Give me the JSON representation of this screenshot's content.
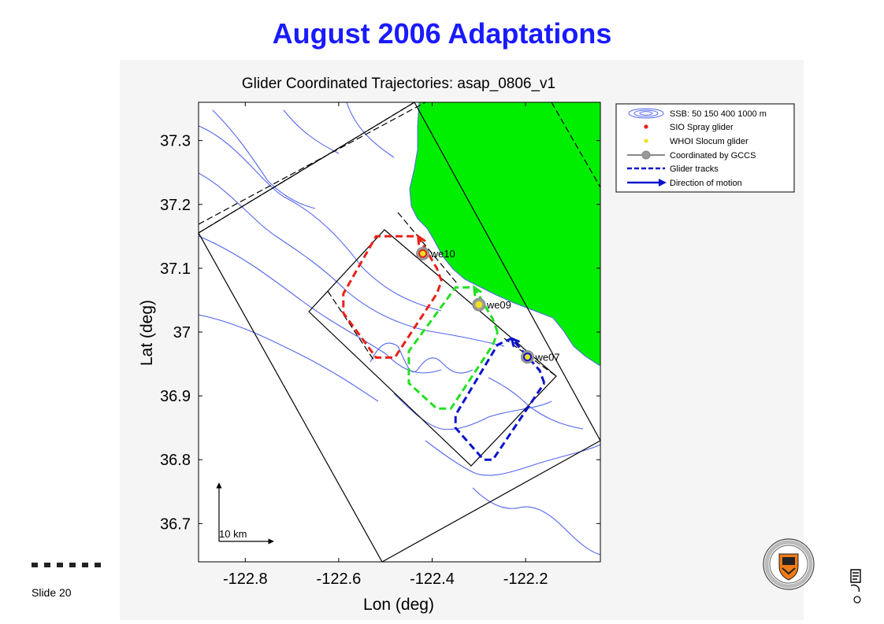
{
  "slide": {
    "title": "August 2006 Adaptations",
    "number_label": "Slide 20"
  },
  "chart_data": {
    "type": "map",
    "title": "Glider Coordinated Trajectories: asap_0806_v1",
    "xlabel": "Lon (deg)",
    "ylabel": "Lat (deg)",
    "xlim": [
      -122.9,
      -122.04
    ],
    "ylim": [
      36.64,
      37.36
    ],
    "xticks": [
      "-122.8",
      "-122.6",
      "-122.4",
      "-122.2"
    ],
    "xtick_values": [
      -122.8,
      -122.6,
      -122.4,
      -122.2
    ],
    "yticks": [
      "37.3",
      "37.2",
      "37.1",
      "37",
      "36.9",
      "36.8",
      "36.7"
    ],
    "ytick_values": [
      37.3,
      37.2,
      37.1,
      37.0,
      36.9,
      36.8,
      36.7
    ],
    "legend": {
      "placement": "outside-right",
      "items": [
        "SSB: 50   150   400  1000 m",
        "SIO Spray glider",
        "WHOI Slocum glider",
        "Coordinated by GCCS",
        "Glider tracks",
        "Direction of motion"
      ]
    },
    "gliders": [
      {
        "name": "we10",
        "type": "SIO Spray",
        "color": "#e8211a",
        "current": [
          -122.42,
          37.123
        ],
        "track": [
          [
            -122.38,
            37.08
          ],
          [
            -122.39,
            37.1
          ],
          [
            -122.43,
            37.15
          ],
          [
            -122.52,
            37.15
          ],
          [
            -122.59,
            37.06
          ],
          [
            -122.59,
            37.03
          ],
          [
            -122.52,
            36.96
          ],
          [
            -122.48,
            36.96
          ],
          [
            -122.39,
            37.06
          ],
          [
            -122.38,
            37.08
          ]
        ]
      },
      {
        "name": "we09",
        "type": "WHOI Slocum",
        "color": "#22e022",
        "current": [
          -122.3,
          37.043
        ],
        "track": [
          [
            -122.26,
            37.0
          ],
          [
            -122.27,
            37.02
          ],
          [
            -122.31,
            37.07
          ],
          [
            -122.35,
            37.07
          ],
          [
            -122.45,
            36.97
          ],
          [
            -122.45,
            36.92
          ],
          [
            -122.39,
            36.88
          ],
          [
            -122.36,
            36.88
          ],
          [
            -122.27,
            36.98
          ],
          [
            -122.26,
            37.0
          ]
        ]
      },
      {
        "name": "we07",
        "type": "SIO Spray",
        "color": "#0a12cc",
        "current": [
          -122.196,
          36.961
        ],
        "track": [
          [
            -122.16,
            36.92
          ],
          [
            -122.17,
            36.94
          ],
          [
            -122.23,
            36.99
          ],
          [
            -122.26,
            36.98
          ],
          [
            -122.35,
            36.87
          ],
          [
            -122.35,
            36.85
          ],
          [
            -122.29,
            36.8
          ],
          [
            -122.27,
            36.8
          ],
          [
            -122.16,
            36.92
          ]
        ]
      }
    ],
    "coastline_color": "#00ee00",
    "contour_color": "#5566ee",
    "scale_bar": "10 km"
  }
}
